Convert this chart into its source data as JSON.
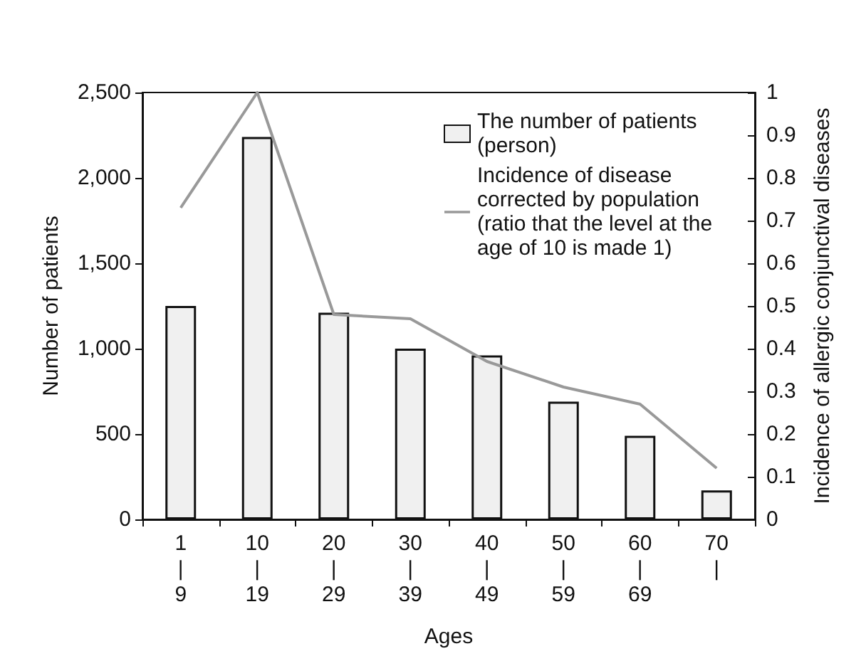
{
  "chart_data": {
    "type": "bar",
    "xlabel": "Ages",
    "ylabel": "Number of patients",
    "y2label": "Incidence of allergic conjunctival diseases",
    "categories": [
      "1\n|\n9",
      "10\n|\n19",
      "20\n|\n29",
      "30\n|\n39",
      "40\n|\n49",
      "50\n|\n59",
      "60\n|\n69",
      "70\n|"
    ],
    "series": [
      {
        "name": "The number of patients (person)",
        "color": "#f0f0f0",
        "values": [
          1250,
          2240,
          1210,
          1000,
          960,
          690,
          490,
          170
        ]
      },
      {
        "name": "Incidence of disease corrected by population (ratio that the level at the age of 10 is made 1)",
        "type": "line",
        "axis": "y2",
        "color": "#999999",
        "values": [
          0.73,
          1.0,
          0.48,
          0.47,
          0.37,
          0.31,
          0.27,
          0.12
        ]
      }
    ],
    "ylim": [
      0,
      2500
    ],
    "yticks": [
      {
        "value": 0,
        "label": "0"
      },
      {
        "value": 500,
        "label": "500"
      },
      {
        "value": 1000,
        "label": "1,000"
      },
      {
        "value": 1500,
        "label": "1,500"
      },
      {
        "value": 2000,
        "label": "2,000"
      },
      {
        "value": 2500,
        "label": "2,500"
      }
    ],
    "y2lim": [
      0,
      1
    ],
    "y2ticks": [
      0,
      0.1,
      0.2,
      0.3,
      0.4,
      0.5,
      0.6,
      0.7,
      0.8,
      0.9,
      1
    ],
    "grid": false,
    "legend": "top right",
    "marker": "none",
    "line_style": "solid"
  }
}
